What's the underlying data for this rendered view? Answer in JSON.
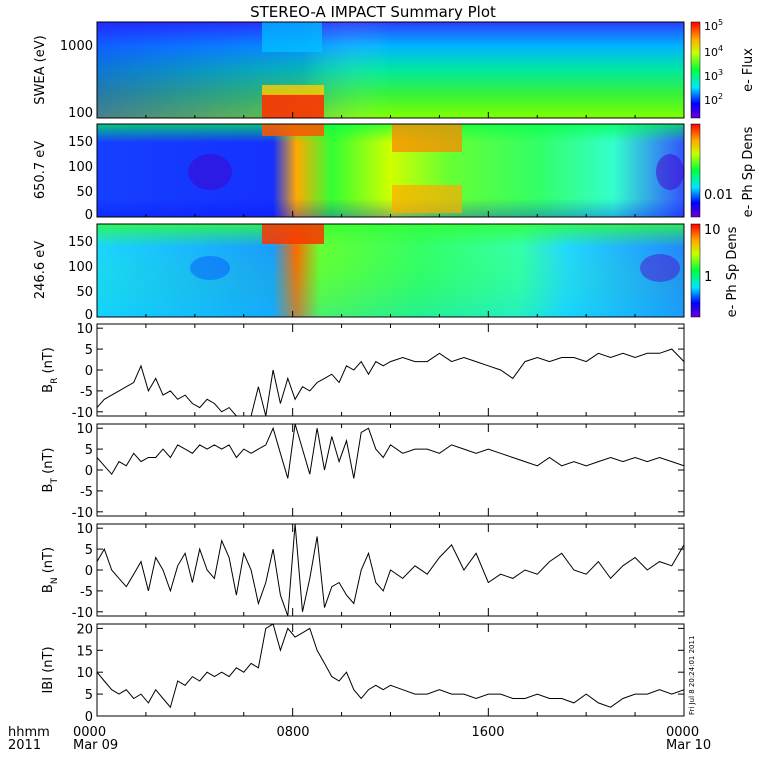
{
  "chart_data": {
    "type": "line",
    "title": "STEREO-A IMPACT Summary Plot",
    "time_axis": {
      "label_row1": "hhmm",
      "label_row2": "2011",
      "ticks": [
        {
          "time": "0000",
          "date": "Mar 09"
        },
        {
          "time": "0800",
          "date": ""
        },
        {
          "time": "1600",
          "date": ""
        },
        {
          "time": "0000",
          "date": "Mar 10"
        }
      ],
      "range_hours": [
        0,
        24
      ]
    },
    "spectrograms": [
      {
        "ylabel": "SWEA (eV)",
        "yscale": "log",
        "yticks": [
          "1000",
          "100"
        ],
        "ylim": [
          90,
          2000
        ],
        "colorbar_label": "e- Flux",
        "colorbar_ticks": [
          "10^5",
          "10^4",
          "10^3",
          "10^2"
        ]
      },
      {
        "ylabel": "650.7 eV",
        "yscale": "linear",
        "yticks": [
          "150",
          "100",
          "50",
          "0"
        ],
        "ylim": [
          0,
          180
        ],
        "colorbar_label": "e- Ph Sp Dens",
        "colorbar_ticks": [
          "0.01"
        ]
      },
      {
        "ylabel": "246.6 eV",
        "yscale": "linear",
        "yticks": [
          "150",
          "100",
          "50",
          "0"
        ],
        "ylim": [
          0,
          180
        ],
        "colorbar_label": "e- Ph Sp Dens",
        "colorbar_ticks": [
          "10",
          "1"
        ]
      }
    ],
    "series": [
      {
        "name": "B_R",
        "ylabel_main": "B",
        "ylabel_sub": "R",
        "ylabel_unit": "(nT)",
        "ylim": [
          -11,
          11
        ],
        "yticks": [
          "10",
          "5",
          "0",
          "-5",
          "-10"
        ],
        "x": [
          0,
          0.3,
          0.6,
          0.9,
          1.2,
          1.5,
          1.8,
          2.1,
          2.4,
          2.7,
          3.0,
          3.3,
          3.6,
          3.9,
          4.2,
          4.5,
          4.8,
          5.1,
          5.4,
          5.7,
          6.0,
          6.3,
          6.6,
          6.9,
          7.2,
          7.5,
          7.8,
          8.1,
          8.4,
          8.7,
          9.0,
          9.3,
          9.6,
          9.9,
          10.2,
          10.5,
          10.8,
          11.1,
          11.4,
          11.7,
          12.0,
          12.5,
          13.0,
          13.5,
          14.0,
          14.5,
          15.0,
          15.5,
          16.0,
          16.5,
          17.0,
          17.5,
          18.0,
          18.5,
          19.0,
          19.5,
          20.0,
          20.5,
          21.0,
          21.5,
          22.0,
          22.5,
          23.0,
          23.5,
          24.0
        ],
        "values": [
          -9,
          -7,
          -6,
          -5,
          -4,
          -3,
          1,
          -5,
          -2,
          -6,
          -5,
          -7,
          -6,
          -8,
          -9,
          -7,
          -8,
          -10,
          -9,
          -11,
          -11,
          -11,
          -4,
          -11,
          0,
          -8,
          -2,
          -7,
          -4,
          -5,
          -3,
          -2,
          -1,
          -3,
          1,
          0,
          2,
          -1,
          2,
          1,
          2,
          3,
          2,
          2,
          4,
          2,
          3,
          2,
          1,
          0,
          -2,
          2,
          3,
          2,
          3,
          3,
          2,
          4,
          3,
          4,
          3,
          4,
          4,
          5,
          2
        ],
        "color": "#000000"
      },
      {
        "name": "B_T",
        "ylabel_main": "B",
        "ylabel_sub": "T",
        "ylabel_unit": "(nT)",
        "ylim": [
          -11,
          11
        ],
        "yticks": [
          "10",
          "5",
          "0",
          "-5",
          "-10"
        ],
        "x": [
          0,
          0.3,
          0.6,
          0.9,
          1.2,
          1.5,
          1.8,
          2.1,
          2.4,
          2.7,
          3.0,
          3.3,
          3.6,
          3.9,
          4.2,
          4.5,
          4.8,
          5.1,
          5.4,
          5.7,
          6.0,
          6.3,
          6.6,
          6.9,
          7.2,
          7.5,
          7.8,
          8.1,
          8.4,
          8.7,
          9.0,
          9.3,
          9.6,
          9.9,
          10.2,
          10.5,
          10.8,
          11.1,
          11.4,
          11.7,
          12.0,
          12.5,
          13.0,
          13.5,
          14.0,
          14.5,
          15.0,
          15.5,
          16.0,
          16.5,
          17.0,
          17.5,
          18.0,
          18.5,
          19.0,
          19.5,
          20.0,
          20.5,
          21.0,
          21.5,
          22.0,
          22.5,
          23.0,
          23.5,
          24.0
        ],
        "values": [
          3,
          1,
          -1,
          2,
          1,
          4,
          2,
          3,
          3,
          5,
          3,
          6,
          5,
          4,
          6,
          5,
          6,
          5,
          6,
          3,
          5,
          4,
          5,
          6,
          10,
          4,
          -2,
          11,
          5,
          -1,
          10,
          0,
          8,
          2,
          7,
          -2,
          9,
          10,
          5,
          3,
          6,
          4,
          5,
          5,
          4,
          6,
          5,
          4,
          5,
          4,
          3,
          2,
          1,
          3,
          1,
          2,
          1,
          2,
          3,
          2,
          3,
          2,
          3,
          2,
          1
        ],
        "color": "#000000"
      },
      {
        "name": "B_N",
        "ylabel_main": "B",
        "ylabel_sub": "N",
        "ylabel_unit": "(nT)",
        "ylim": [
          -11,
          11
        ],
        "yticks": [
          "10",
          "5",
          "0",
          "-5",
          "-10"
        ],
        "x": [
          0,
          0.3,
          0.6,
          0.9,
          1.2,
          1.5,
          1.8,
          2.1,
          2.4,
          2.7,
          3.0,
          3.3,
          3.6,
          3.9,
          4.2,
          4.5,
          4.8,
          5.1,
          5.4,
          5.7,
          6.0,
          6.3,
          6.6,
          6.9,
          7.2,
          7.5,
          7.8,
          8.1,
          8.4,
          8.7,
          9.0,
          9.3,
          9.6,
          9.9,
          10.2,
          10.5,
          10.8,
          11.1,
          11.4,
          11.7,
          12.0,
          12.5,
          13.0,
          13.5,
          14.0,
          14.5,
          15.0,
          15.5,
          16.0,
          16.5,
          17.0,
          17.5,
          18.0,
          18.5,
          19.0,
          19.5,
          20.0,
          20.5,
          21.0,
          21.5,
          22.0,
          22.5,
          23.0,
          23.5,
          24.0
        ],
        "values": [
          2,
          5,
          0,
          -2,
          -4,
          -1,
          2,
          -5,
          3,
          0,
          -5,
          1,
          4,
          -3,
          5,
          0,
          -2,
          7,
          3,
          -6,
          4,
          0,
          -8,
          -3,
          5,
          -6,
          -11,
          11,
          -10,
          -2,
          8,
          -9,
          -4,
          -3,
          -6,
          -8,
          0,
          4,
          -3,
          -5,
          0,
          -2,
          1,
          -1,
          3,
          6,
          0,
          4,
          -3,
          -1,
          -2,
          0,
          -1,
          2,
          4,
          0,
          -1,
          2,
          -2,
          1,
          3,
          0,
          2,
          1,
          6
        ],
        "color": "#000000"
      },
      {
        "name": "|B|",
        "ylabel_main": "IBI",
        "ylabel_sub": "",
        "ylabel_unit": "(nT)",
        "ylim": [
          0,
          21
        ],
        "yticks": [
          "20",
          "15",
          "10",
          "5",
          "0"
        ],
        "x": [
          0,
          0.3,
          0.6,
          0.9,
          1.2,
          1.5,
          1.8,
          2.1,
          2.4,
          2.7,
          3.0,
          3.3,
          3.6,
          3.9,
          4.2,
          4.5,
          4.8,
          5.1,
          5.4,
          5.7,
          6.0,
          6.3,
          6.6,
          6.9,
          7.2,
          7.5,
          7.8,
          8.1,
          8.4,
          8.7,
          9.0,
          9.3,
          9.6,
          9.9,
          10.2,
          10.5,
          10.8,
          11.1,
          11.4,
          11.7,
          12.0,
          12.5,
          13.0,
          13.5,
          14.0,
          14.5,
          15.0,
          15.5,
          16.0,
          16.5,
          17.0,
          17.5,
          18.0,
          18.5,
          19.0,
          19.5,
          20.0,
          20.5,
          21.0,
          21.5,
          22.0,
          22.5,
          23.0,
          23.5,
          24.0
        ],
        "values": [
          10,
          8,
          6,
          5,
          6,
          4,
          5,
          3,
          6,
          4,
          2,
          8,
          7,
          9,
          8,
          10,
          9,
          10,
          9,
          11,
          10,
          12,
          11,
          20,
          21,
          15,
          20,
          18,
          19,
          20,
          15,
          12,
          9,
          8,
          10,
          6,
          4,
          6,
          7,
          6,
          7,
          6,
          5,
          5,
          6,
          5,
          5,
          4,
          5,
          5,
          4,
          4,
          5,
          4,
          4,
          3,
          5,
          3,
          2,
          4,
          5,
          5,
          6,
          5,
          6
        ],
        "color": "#000000"
      }
    ],
    "side_annotation": "Fri Jul  8 20:24:01 2011"
  }
}
